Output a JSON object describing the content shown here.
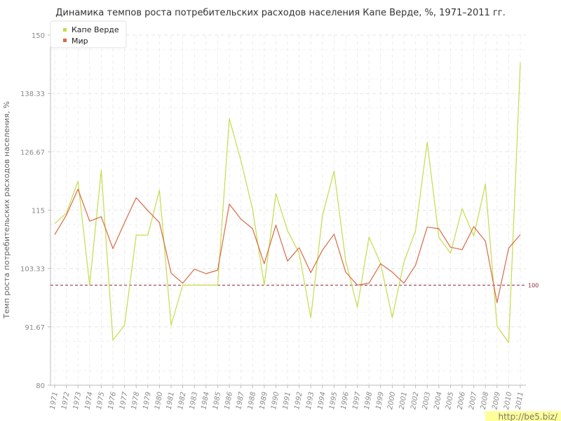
{
  "chart_data": {
    "type": "line",
    "title": "Динамика темпов роста потребительских расходов населения Капе Верде, %, 1971–2011 гг.",
    "ylabel": "Темп роста потребительских расходов населения, %",
    "xlabel": "",
    "ylim": [
      80,
      150
    ],
    "yticks": [
      "80",
      "91.67",
      "103.33",
      "115",
      "126.67",
      "138.33",
      "150"
    ],
    "ytick_values": [
      80,
      91.67,
      103.33,
      115,
      126.67,
      138.33,
      150
    ],
    "categories": [
      "1971",
      "1972",
      "1973",
      "1974",
      "1975",
      "1976",
      "1977",
      "1978",
      "1979",
      "1980",
      "1981",
      "1982",
      "1983",
      "1984",
      "1985",
      "1986",
      "1987",
      "1988",
      "1989",
      "1990",
      "1991",
      "1992",
      "1993",
      "1994",
      "1995",
      "1996",
      "1997",
      "1998",
      "1999",
      "2000",
      "2001",
      "2002",
      "2003",
      "2004",
      "2005",
      "2006",
      "2007",
      "2008",
      "2009",
      "2010",
      "2011"
    ],
    "series": [
      {
        "name": "Капе Верде",
        "color": "#c5dc4a",
        "values": [
          112.3,
          114.4,
          120.8,
          100.0,
          123.0,
          89.0,
          92.0,
          110.0,
          110.0,
          119.0,
          92.0,
          100.0,
          100.0,
          100.0,
          100.0,
          133.3,
          124.9,
          115.2,
          100.0,
          118.3,
          110.9,
          106.4,
          93.5,
          113.9,
          122.8,
          104.8,
          95.6,
          109.6,
          104.3,
          93.5,
          104.6,
          110.9,
          128.6,
          109.6,
          106.4,
          115.3,
          109.8,
          120.2,
          91.8,
          88.5,
          144.5
        ]
      },
      {
        "name": "Мир",
        "color": "#d96a44",
        "values": [
          110.1,
          114.0,
          119.2,
          112.8,
          113.7,
          107.3,
          112.5,
          117.5,
          114.9,
          112.5,
          102.4,
          100.4,
          103.2,
          102.3,
          103.0,
          116.2,
          113.2,
          111.3,
          104.3,
          112.0,
          104.8,
          107.5,
          102.5,
          107.0,
          110.2,
          102.6,
          100.0,
          100.4,
          104.3,
          102.6,
          100.4,
          104.0,
          111.6,
          111.3,
          107.6,
          107.1,
          111.7,
          108.8,
          96.5,
          107.4,
          110.1
        ]
      }
    ],
    "reference_line": {
      "value": 100,
      "label": "100",
      "color": "#8b2a3a"
    },
    "legend": {
      "placement": "top-left",
      "entries": [
        "Капе Верде",
        "Мир"
      ]
    },
    "grid": true
  },
  "watermark": "http://be5.biz/"
}
